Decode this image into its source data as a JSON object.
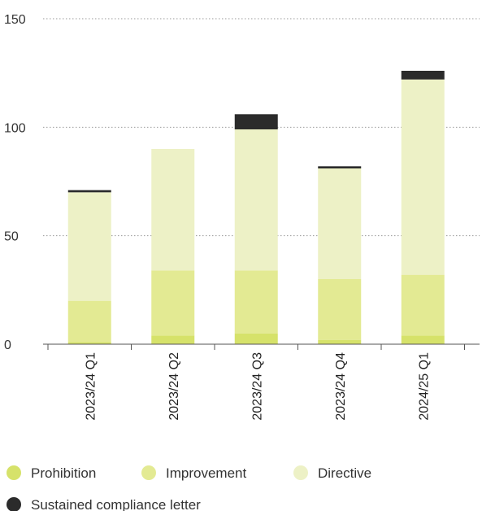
{
  "chart_data": {
    "type": "bar",
    "stacked": true,
    "categories": [
      "2023/24 Q1",
      "2023/24 Q2",
      "2023/24 Q3",
      "2023/24 Q4",
      "2024/25 Q1"
    ],
    "series": [
      {
        "name": "Prohibition",
        "color": "#d6e26a",
        "values": [
          1,
          4,
          5,
          2,
          4
        ]
      },
      {
        "name": "Improvement",
        "color": "#e3ea93",
        "values": [
          19,
          30,
          29,
          28,
          28
        ]
      },
      {
        "name": "Directive",
        "color": "#edf1c6",
        "values": [
          50,
          56,
          65,
          51,
          90
        ]
      },
      {
        "name": "Sustained compliance letter",
        "color": "#2b2b2b",
        "values": [
          1,
          0,
          7,
          1,
          4
        ]
      }
    ],
    "ylim": [
      0,
      150
    ],
    "yticks": [
      0,
      50,
      100,
      150
    ],
    "grid": true,
    "legend_position": "bottom"
  }
}
